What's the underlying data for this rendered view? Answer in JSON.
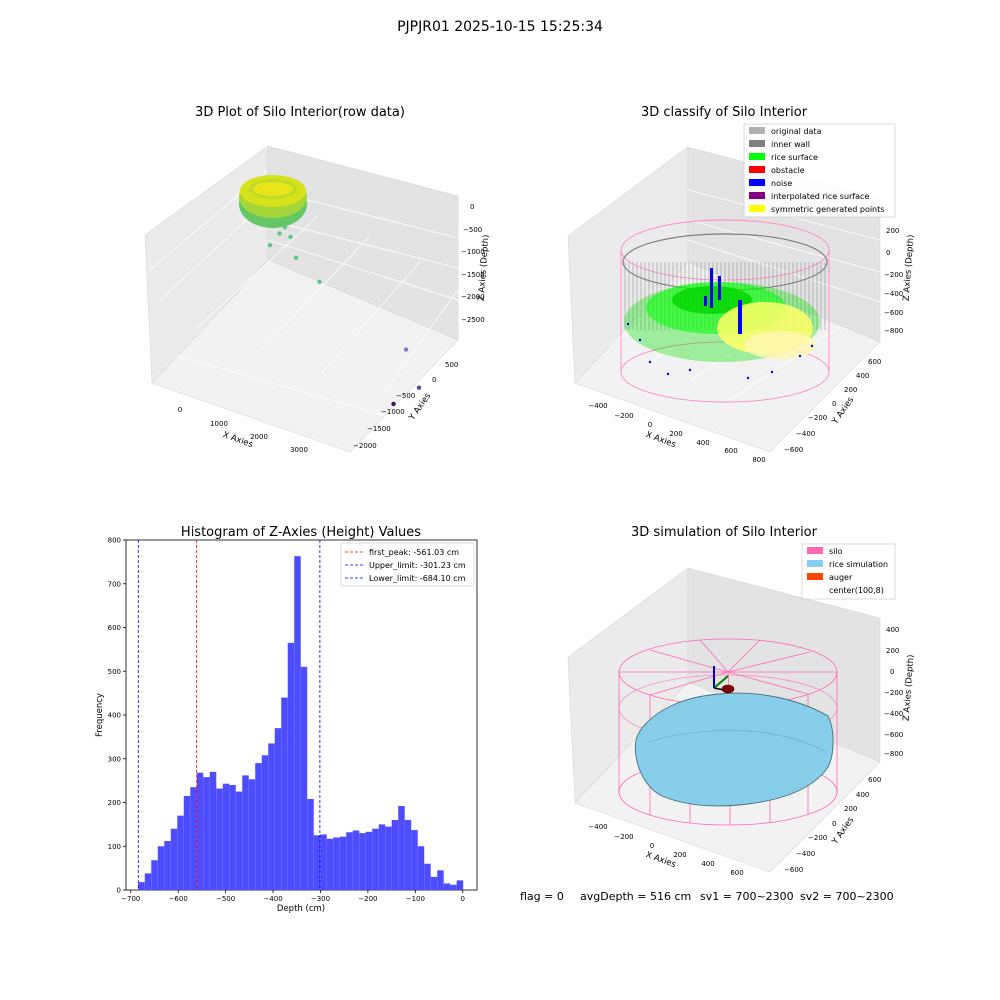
{
  "figure": {
    "suptitle": "PJPJR01 2025-10-15 15:25:34",
    "status": {
      "flag": "flag = 0",
      "avg": "avgDepth = 516 cm",
      "sv1": "sv1 = 700~2300",
      "sv2": "sv2 = 700~2300"
    }
  },
  "colors": {
    "original_data": "#b0b0b0",
    "inner_wall": "#808080",
    "rice_surface": "#00ff00",
    "obstacle": "#ff0000",
    "noise": "#0000ff",
    "interpolated": "#800080",
    "symmetric": "#ffff00",
    "silo": "#ff69b4",
    "rice_sim": "#87ceeb",
    "auger": "#ff4500",
    "hist_bar": "#4d4dff"
  },
  "chart_data": [
    {
      "type": "scatter",
      "title": "3D Plot of Silo Interior(row data)",
      "xlabel": "X Axies",
      "ylabel": "Y Axies",
      "zlabel": "Z Axies (Depth)",
      "x_ticks": [
        "0",
        "1000",
        "2000",
        "3000"
      ],
      "y_ticks": [
        "500",
        "0",
        "−500",
        "−1000",
        "−1500",
        "−2000"
      ],
      "z_ticks": [
        "0",
        "−500",
        "−1000",
        "−1500",
        "−2000",
        "−2500"
      ],
      "outliers": [
        {
          "x": 300,
          "y": 0,
          "z": -750,
          "color": "#5cc98a"
        },
        {
          "x": 350,
          "y": -100,
          "z": -850,
          "color": "#5cc98a"
        },
        {
          "x": 250,
          "y": 100,
          "z": -1000,
          "color": "#5cc98a"
        },
        {
          "x": 400,
          "y": -200,
          "z": -1200,
          "color": "#5cc98a"
        },
        {
          "x": 100,
          "y": 200,
          "z": -1400,
          "color": "#5cc98a"
        },
        {
          "x": 900,
          "y": -300,
          "z": -1500,
          "color": "#5cc98a"
        },
        {
          "x": 2800,
          "y": -600,
          "z": -2200,
          "color": "#8a75c9"
        },
        {
          "x": 2600,
          "y": -1200,
          "z": -2500,
          "color": "#5b4aa8"
        },
        {
          "x": 1700,
          "y": -1500,
          "z": -2800,
          "color": "#3b0f5a"
        }
      ]
    },
    {
      "type": "scatter",
      "title": "3D classify of Silo Interior",
      "xlabel": "X Axies",
      "ylabel": "Y Axies",
      "zlabel": "Z Axies (Depth)",
      "x_ticks": [
        "−400",
        "−200",
        "0",
        "200",
        "400",
        "600",
        "800"
      ],
      "y_ticks": [
        "600",
        "400",
        "200",
        "0",
        "−200",
        "−400",
        "−600"
      ],
      "z_ticks": [
        "200",
        "0",
        "−200",
        "−400",
        "−600",
        "−800"
      ],
      "legend": [
        {
          "label": "original data",
          "color": "#b0b0b0"
        },
        {
          "label": "inner wall",
          "color": "#808080"
        },
        {
          "label": "rice surface",
          "color": "#00ff00"
        },
        {
          "label": "obstacle",
          "color": "#ff0000"
        },
        {
          "label": "noise",
          "color": "#0000ff"
        },
        {
          "label": "interpolated rice surface",
          "color": "#800080"
        },
        {
          "label": "symmetric generated points",
          "color": "#ffff00"
        }
      ]
    },
    {
      "type": "bar",
      "title": "Histogram of Z-Axies (Height) Values",
      "xlabel": "Depth (cm)",
      "ylabel": "Frequency",
      "xlim": [
        -710,
        30
      ],
      "ylim": [
        0,
        800
      ],
      "x_ticks": [
        -700,
        -600,
        -500,
        -400,
        -300,
        -200,
        -100,
        0
      ],
      "x_tick_labels": [
        "−700",
        "−600",
        "−500",
        "−400",
        "−300",
        "−200",
        "−100",
        "0"
      ],
      "y_ticks": [
        0,
        100,
        200,
        300,
        400,
        500,
        600,
        700,
        800
      ],
      "bin_start": -684.1,
      "bin_width": 13.7,
      "values": [
        18,
        38,
        68,
        100,
        112,
        140,
        170,
        215,
        235,
        268,
        258,
        270,
        232,
        243,
        240,
        225,
        262,
        253,
        290,
        308,
        335,
        370,
        440,
        565,
        763,
        510,
        208,
        125,
        127,
        117,
        120,
        122,
        132,
        136,
        130,
        133,
        140,
        150,
        145,
        160,
        192,
        160,
        137,
        100,
        60,
        30,
        45,
        15,
        12,
        22
      ],
      "vlines": [
        {
          "x": -561.03,
          "color": "#ff0000",
          "label": "first_peak: -561.03 cm"
        },
        {
          "x": -301.23,
          "color": "#0000ff",
          "label": "Upper_limit: -301.23 cm"
        },
        {
          "x": -684.1,
          "color": "#0000ff",
          "label": "Lower_limit: -684.10 cm"
        }
      ],
      "legend_position": "top-right"
    },
    {
      "type": "surface",
      "title": "3D simulation of Silo Interior",
      "xlabel": "X Axies",
      "ylabel": "Y Axies",
      "zlabel": "Z Axies (Depth)",
      "x_ticks": [
        "−400",
        "−200",
        "0",
        "200",
        "400",
        "600"
      ],
      "y_ticks": [
        "600",
        "400",
        "200",
        "0",
        "−200",
        "−400",
        "−600"
      ],
      "z_ticks": [
        "400",
        "200",
        "0",
        "−200",
        "−400",
        "−600",
        "−800"
      ],
      "legend": [
        {
          "label": "silo",
          "color": "#ff69b4"
        },
        {
          "label": "rice simulation",
          "color": "#87ceeb"
        },
        {
          "label": "auger",
          "color": "#ff4500"
        },
        {
          "label": "center(100,8)",
          "color": ""
        }
      ]
    }
  ]
}
